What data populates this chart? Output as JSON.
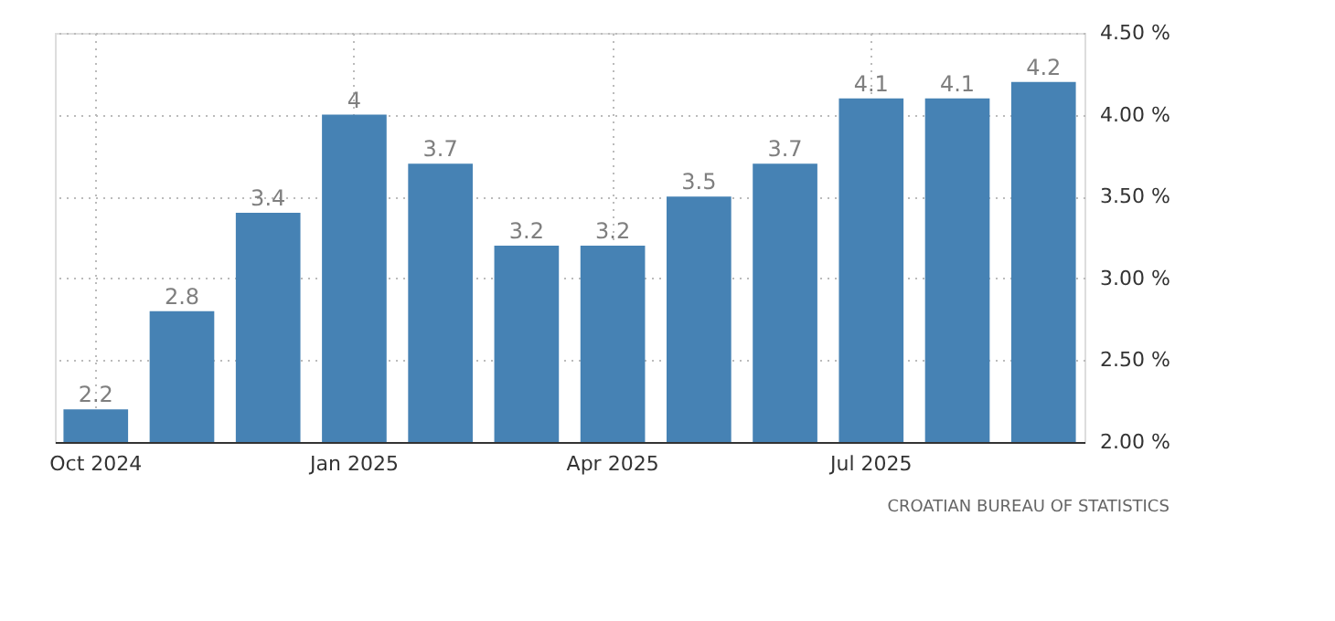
{
  "chart_data": {
    "type": "bar",
    "categories": [
      "Oct 2024",
      null,
      null,
      "Jan 2025",
      null,
      null,
      "Apr 2025",
      null,
      null,
      "Jul 2025",
      null,
      null
    ],
    "values": [
      2.2,
      2.8,
      3.4,
      4,
      3.7,
      3.2,
      3.2,
      3.5,
      3.7,
      4.1,
      4.1,
      4.2
    ],
    "color": "#4682b4",
    "ylim": [
      2,
      4.5
    ],
    "yticks": [
      {
        "value": 2,
        "label": "2.00 %"
      },
      {
        "value": 2.5,
        "label": "2.50 %"
      },
      {
        "value": 3,
        "label": "3.00 %"
      },
      {
        "value": 3.5,
        "label": "3.50 %"
      },
      {
        "value": 4,
        "label": "4.00 %"
      },
      {
        "value": 4.5,
        "label": "4.50 %"
      }
    ],
    "grid": true,
    "data_labels": true,
    "annotations": [
      "CROATIAN BUREAU OF STATISTICS"
    ]
  }
}
